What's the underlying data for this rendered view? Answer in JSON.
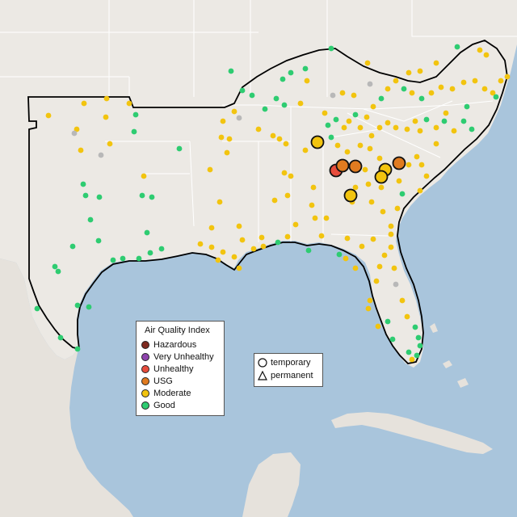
{
  "legend": {
    "title": "Air Quality Index",
    "categories": [
      {
        "label": "Hazardous",
        "color": "#7e2a1f"
      },
      {
        "label": "Very Unhealthy",
        "color": "#8e44ad"
      },
      {
        "label": "Unhealthy",
        "color": "#e74c3c"
      },
      {
        "label": "USG",
        "color": "#e07b20"
      },
      {
        "label": "Moderate",
        "color": "#f2c40f"
      },
      {
        "label": "Good",
        "color": "#2ecc71"
      }
    ]
  },
  "marker_legend": {
    "temporary": "temporary",
    "permanent": "permanent"
  },
  "colors": {
    "water": "#a9c5dc",
    "land": "#ece9e4",
    "border": "#ffffff",
    "region_outline": "#000000"
  }
}
